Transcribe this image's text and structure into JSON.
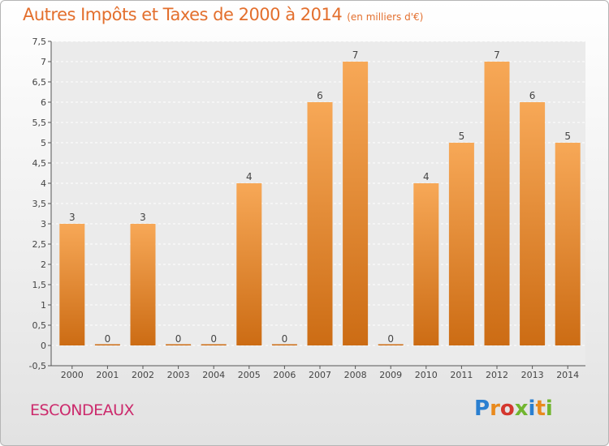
{
  "title": "Autres Impôts et Taxes de 2000 à 2014",
  "subtitle": "(en milliers d'€)",
  "place": "ESCONDEAUX",
  "brand": {
    "letters": [
      "P",
      "r",
      "o",
      "x",
      "i",
      "t",
      "i"
    ],
    "colors": [
      "#2a7fd0",
      "#e98a1d",
      "#d4372e",
      "#71b52f",
      "#2a7fd0",
      "#e98a1d",
      "#71b52f"
    ]
  },
  "colors": {
    "bar_top": "#f7a857",
    "bar_bottom": "#cc6c14",
    "title": "#e36f2d",
    "place": "#cc2a6c"
  },
  "chart_data": {
    "type": "bar",
    "categories": [
      "2000",
      "2001",
      "2002",
      "2003",
      "2004",
      "2005",
      "2006",
      "2007",
      "2008",
      "2009",
      "2010",
      "2011",
      "2012",
      "2013",
      "2014"
    ],
    "values": [
      3,
      0,
      3,
      0,
      0,
      4,
      0,
      6,
      7,
      0,
      4,
      5,
      7,
      6,
      5
    ],
    "labels": [
      "3",
      "0",
      "3",
      "0",
      "0",
      "4",
      "0",
      "6",
      "7",
      "0",
      "4",
      "5",
      "7",
      "6",
      "5"
    ],
    "ylim": [
      -0.5,
      7.5
    ],
    "yticks": [
      -0.5,
      0,
      0.5,
      1,
      1.5,
      2,
      2.5,
      3,
      3.5,
      4,
      4.5,
      5,
      5.5,
      6,
      6.5,
      7,
      7.5
    ],
    "ytick_labels": [
      "-0,5",
      "0",
      "0,5",
      "1",
      "1,5",
      "2",
      "2,5",
      "3",
      "3,5",
      "4",
      "4,5",
      "5",
      "5,5",
      "6",
      "6,5",
      "7",
      "7,5"
    ],
    "grid": true,
    "xlabel": "",
    "ylabel": ""
  }
}
